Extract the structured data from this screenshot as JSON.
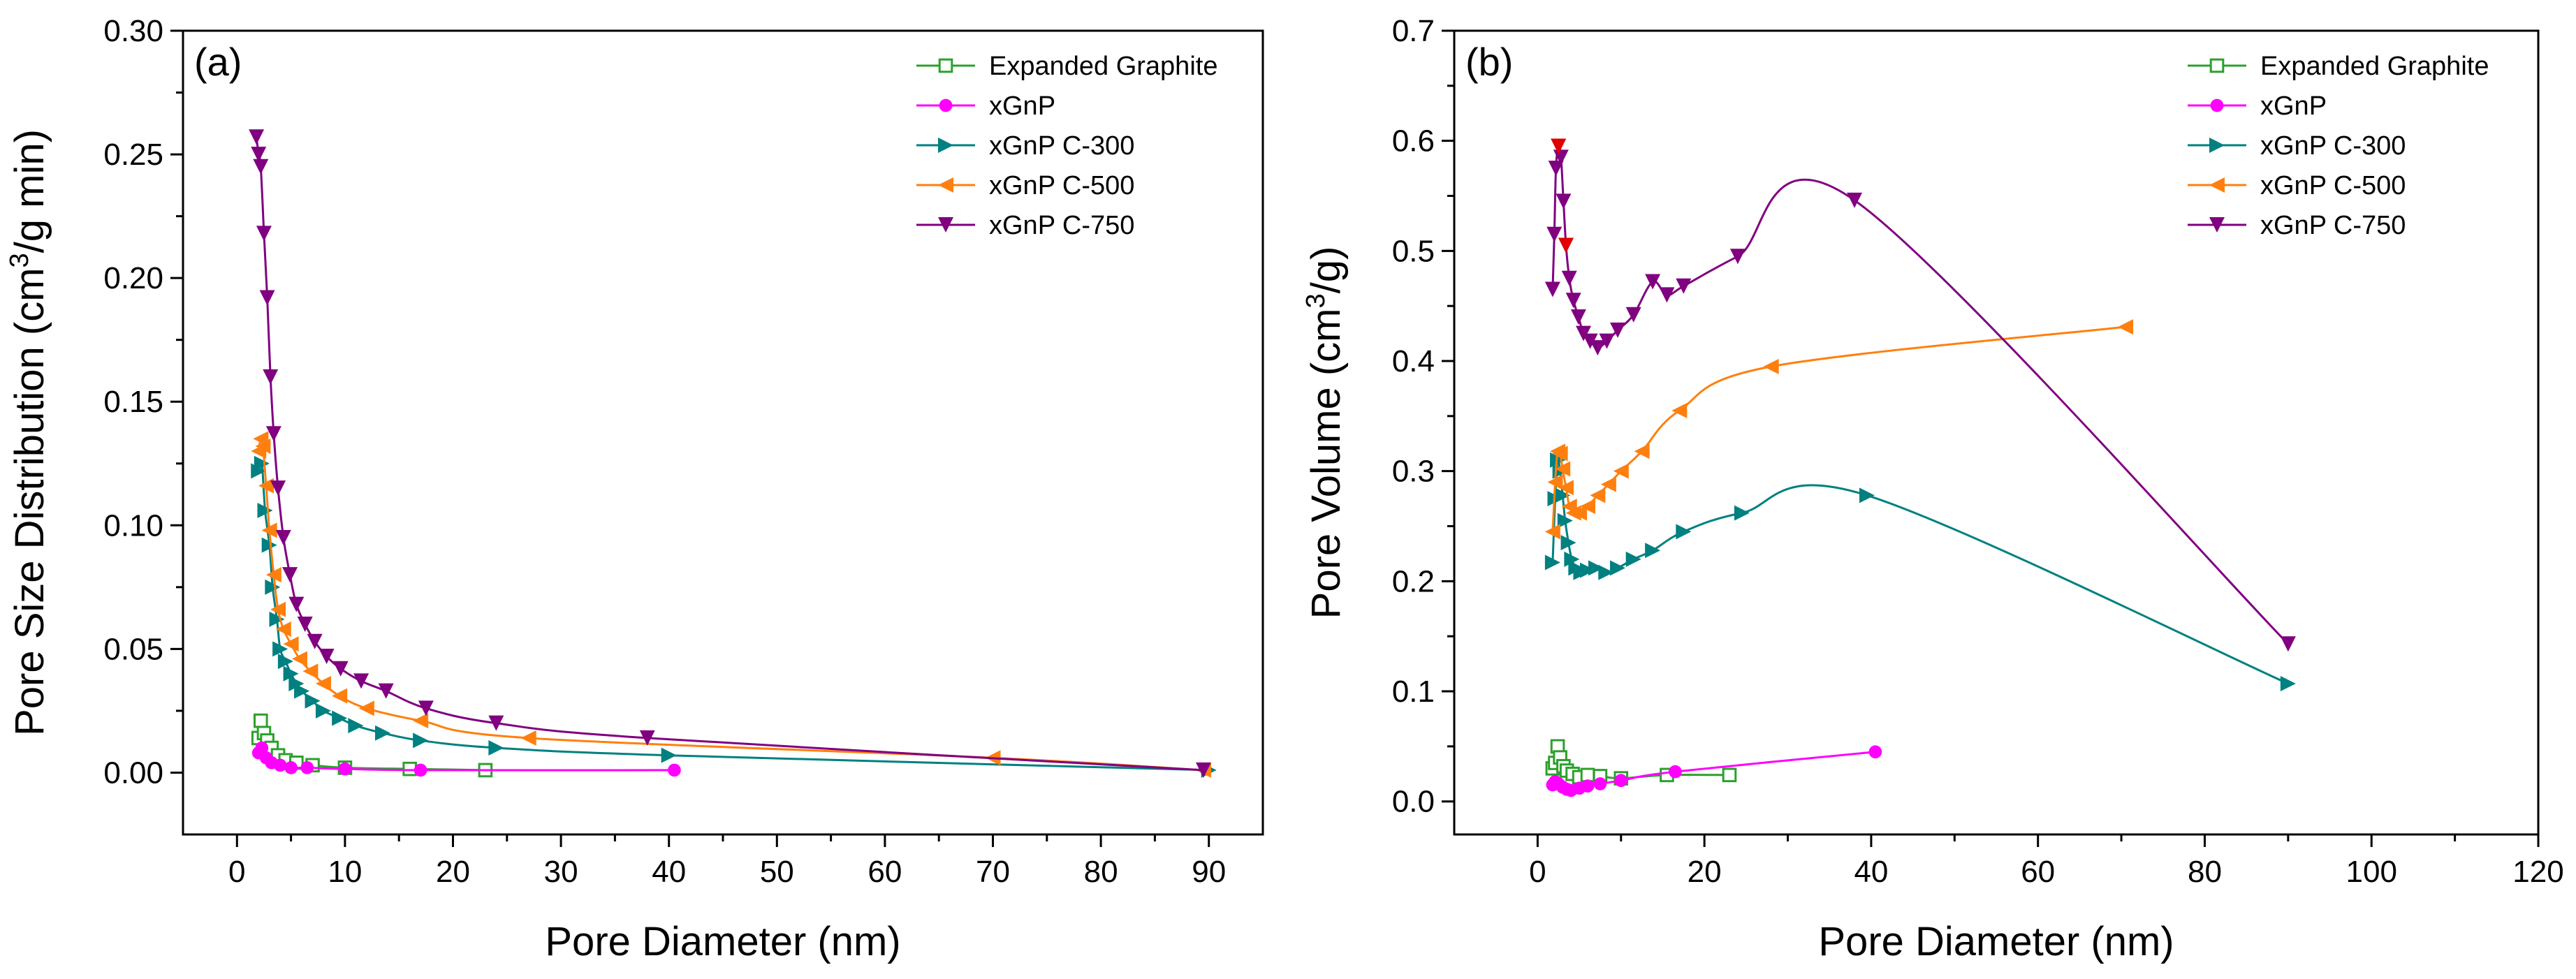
{
  "figure": {
    "description_free": true
  },
  "colors": {
    "eg": "#2ca02c",
    "xgnp": "#ff00ff",
    "c300": "#008080",
    "c500": "#ff7f0e",
    "c750": "#800080",
    "c750_highlight": "#e00000"
  },
  "chart_data": [
    {
      "type": "line",
      "panel_label": "(a)",
      "title": "",
      "xlabel": "Pore Diameter (nm)",
      "ylabel_prefix": "Pore Size Distribution (cm",
      "ylabel_sup": "3",
      "ylabel_suffix": "/g min)",
      "xlim": [
        -5,
        95
      ],
      "ylim": [
        -0.025,
        0.3
      ],
      "xticks": [
        0,
        10,
        20,
        30,
        40,
        50,
        60,
        70,
        80,
        90
      ],
      "xtick_labels": [
        "0",
        "10",
        "20",
        "30",
        "40",
        "50",
        "60",
        "70",
        "80",
        "90"
      ],
      "yticks": [
        0.0,
        0.05,
        0.1,
        0.15,
        0.2,
        0.25,
        0.3
      ],
      "ytick_labels": [
        "0.00",
        "0.05",
        "0.10",
        "0.15",
        "0.20",
        "0.25",
        "0.30"
      ],
      "legend_position": "top-right",
      "series": [
        {
          "name": "Expanded Graphite",
          "color_key": "eg",
          "marker": "square-open",
          "x": [
            2.0,
            2.2,
            2.5,
            2.8,
            3.2,
            3.8,
            4.5,
            5.5,
            7.0,
            10.0,
            16.0,
            23.0
          ],
          "y": [
            0.014,
            0.021,
            0.016,
            0.013,
            0.01,
            0.007,
            0.005,
            0.004,
            0.003,
            0.002,
            0.0015,
            0.001
          ]
        },
        {
          "name": "xGnP",
          "color_key": "xgnp",
          "marker": "circle",
          "x": [
            2.0,
            2.3,
            2.7,
            3.2,
            4.0,
            5.0,
            6.5,
            10.0,
            17.0,
            40.5
          ],
          "y": [
            0.008,
            0.01,
            0.006,
            0.004,
            0.003,
            0.002,
            0.002,
            0.0015,
            0.001,
            0.001
          ]
        },
        {
          "name": "xGnP C-300",
          "color_key": "c300",
          "marker": "triangle-right",
          "x": [
            2.0,
            2.3,
            2.6,
            3.0,
            3.3,
            3.7,
            4.0,
            4.5,
            5.0,
            5.5,
            6.0,
            7.0,
            8.0,
            9.5,
            11.0,
            13.5,
            17.0,
            24.0,
            40.0,
            90.0
          ],
          "y": [
            0.122,
            0.125,
            0.106,
            0.092,
            0.075,
            0.062,
            0.05,
            0.045,
            0.04,
            0.036,
            0.033,
            0.029,
            0.025,
            0.022,
            0.019,
            0.016,
            0.013,
            0.01,
            0.007,
            0.001
          ]
        },
        {
          "name": "xGnP C-500",
          "color_key": "c500",
          "marker": "triangle-left",
          "x": [
            2.0,
            2.2,
            2.4,
            2.7,
            3.0,
            3.4,
            3.8,
            4.3,
            5.0,
            5.8,
            6.8,
            8.0,
            9.5,
            12.0,
            17.0,
            27.0,
            70.0,
            89.5
          ],
          "y": [
            0.13,
            0.135,
            0.132,
            0.116,
            0.098,
            0.08,
            0.066,
            0.058,
            0.052,
            0.046,
            0.041,
            0.036,
            0.031,
            0.026,
            0.021,
            0.014,
            0.006,
            0.001
          ]
        },
        {
          "name": "xGnP C-750",
          "color_key": "c750",
          "marker": "triangle-down",
          "x": [
            1.8,
            2.0,
            2.2,
            2.5,
            2.8,
            3.1,
            3.4,
            3.8,
            4.3,
            4.9,
            5.5,
            6.3,
            7.2,
            8.3,
            9.6,
            11.5,
            13.8,
            17.5,
            24.0,
            38.0,
            89.5
          ],
          "y": [
            0.257,
            0.25,
            0.245,
            0.218,
            0.192,
            0.16,
            0.137,
            0.115,
            0.095,
            0.08,
            0.068,
            0.06,
            0.053,
            0.047,
            0.042,
            0.037,
            0.033,
            0.026,
            0.02,
            0.014,
            0.001
          ]
        }
      ]
    },
    {
      "type": "line",
      "panel_label": "(b)",
      "title": "",
      "xlabel": "Pore Diameter (nm)",
      "ylabel_prefix": "Pore Volume (cm",
      "ylabel_sup": "3",
      "ylabel_suffix": "/g)",
      "xlim": [
        -10,
        120
      ],
      "ylim": [
        -0.03,
        0.7
      ],
      "xticks": [
        0,
        20,
        40,
        60,
        80,
        100,
        120
      ],
      "xtick_labels": [
        "0",
        "20",
        "40",
        "60",
        "80",
        "100",
        "120"
      ],
      "yticks": [
        0.0,
        0.1,
        0.2,
        0.3,
        0.4,
        0.5,
        0.6,
        0.7
      ],
      "ytick_labels": [
        "0.0",
        "0.1",
        "0.2",
        "0.3",
        "0.4",
        "0.5",
        "0.6",
        "0.7"
      ],
      "legend_position": "top-right",
      "series": [
        {
          "name": "Expanded Graphite",
          "color_key": "eg",
          "marker": "square-open",
          "x": [
            1.8,
            2.1,
            2.4,
            2.7,
            3.1,
            3.5,
            4.2,
            5.0,
            6.0,
            7.5,
            10.0,
            15.5,
            23.0
          ],
          "y": [
            0.03,
            0.035,
            0.05,
            0.04,
            0.032,
            0.028,
            0.025,
            0.022,
            0.024,
            0.023,
            0.021,
            0.024,
            0.024
          ]
        },
        {
          "name": "xGnP",
          "color_key": "xgnp",
          "marker": "circle",
          "x": [
            1.8,
            2.1,
            2.5,
            3.0,
            3.5,
            4.0,
            5.0,
            6.0,
            7.5,
            10.0,
            16.5,
            40.5
          ],
          "y": [
            0.015,
            0.018,
            0.016,
            0.013,
            0.011,
            0.01,
            0.012,
            0.014,
            0.016,
            0.019,
            0.027,
            0.045
          ]
        },
        {
          "name": "xGnP C-300",
          "color_key": "c300",
          "marker": "triangle-right",
          "x": [
            1.8,
            2.1,
            2.4,
            2.7,
            3.0,
            3.3,
            3.7,
            4.1,
            4.6,
            5.2,
            6.0,
            7.0,
            8.2,
            9.6,
            11.5,
            13.8,
            17.5,
            24.5,
            39.5,
            90.0
          ],
          "y": [
            0.217,
            0.275,
            0.31,
            0.3,
            0.278,
            0.255,
            0.235,
            0.22,
            0.212,
            0.208,
            0.21,
            0.212,
            0.208,
            0.212,
            0.22,
            0.228,
            0.245,
            0.262,
            0.278,
            0.107
          ]
        },
        {
          "name": "xGnP C-500",
          "color_key": "c500",
          "marker": "triangle-left",
          "x": [
            1.8,
            2.1,
            2.4,
            2.7,
            3.0,
            3.4,
            3.8,
            4.3,
            5.0,
            6.0,
            7.2,
            8.5,
            10.0,
            12.5,
            17.0,
            28.0,
            70.5
          ],
          "y": [
            0.245,
            0.29,
            0.318,
            0.316,
            0.302,
            0.285,
            0.268,
            0.262,
            0.262,
            0.268,
            0.278,
            0.288,
            0.3,
            0.318,
            0.355,
            0.395,
            0.431
          ]
        },
        {
          "name": "xGnP C-750",
          "color_key": "c750",
          "marker": "triangle-down",
          "x": [
            1.8,
            2.0,
            2.2,
            2.5,
            2.8,
            3.1,
            3.4,
            3.8,
            4.3,
            4.9,
            5.5,
            6.3,
            7.2,
            8.3,
            9.6,
            11.5,
            13.8,
            15.5,
            17.5,
            24.0,
            38.0,
            90.0
          ],
          "y": [
            0.465,
            0.515,
            0.575,
            0.595,
            0.585,
            0.545,
            0.505,
            0.475,
            0.455,
            0.44,
            0.425,
            0.418,
            0.412,
            0.418,
            0.428,
            0.442,
            0.472,
            0.46,
            0.468,
            0.495,
            0.546,
            0.143
          ]
        }
      ]
    }
  ]
}
